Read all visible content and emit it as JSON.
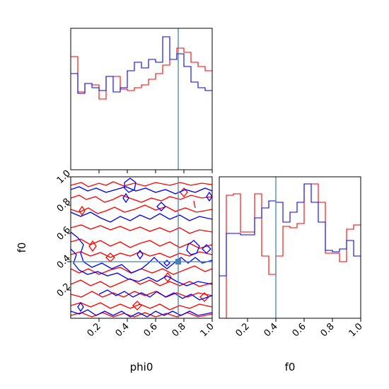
{
  "chart_data": {
    "type": "corner",
    "parameters": [
      "phi0",
      "f0"
    ],
    "truth": {
      "phi0": 0.76,
      "f0": 0.4
    },
    "colors": {
      "series_a": "#ff0000",
      "series_b": "#0000ff",
      "truth": "#4682b4"
    },
    "ticks": [
      "0.2",
      "0.4",
      "0.6",
      "0.8",
      "1.0"
    ],
    "tick_values": [
      0.2,
      0.4,
      0.6,
      0.8,
      1.0
    ],
    "xlim": [
      0,
      1
    ],
    "ylim": [
      0,
      1
    ],
    "hist_phi0": {
      "bins": 20,
      "red": [
        0.8,
        0.55,
        0.61,
        0.6,
        0.5,
        0.66,
        0.66,
        0.57,
        0.56,
        0.58,
        0.6,
        0.64,
        0.68,
        0.74,
        0.78,
        0.86,
        0.83,
        0.76,
        0.73,
        0.7
      ],
      "blue": [
        0.68,
        0.54,
        0.61,
        0.58,
        0.56,
        0.66,
        0.55,
        0.58,
        0.7,
        0.76,
        0.72,
        0.78,
        0.76,
        0.94,
        0.78,
        0.82,
        0.73,
        0.62,
        0.58,
        0.56
      ]
    },
    "hist_f0": {
      "bins": 20,
      "red": [
        0.0,
        0.87,
        0.88,
        0.61,
        0.61,
        0.88,
        0.44,
        0.31,
        0.44,
        0.65,
        0.64,
        0.67,
        0.95,
        0.95,
        0.82,
        0.46,
        0.46,
        0.4,
        0.63,
        0.66
      ],
      "blue": [
        0.3,
        0.6,
        0.6,
        0.59,
        0.59,
        0.71,
        0.78,
        0.83,
        0.82,
        0.68,
        0.75,
        0.82,
        0.95,
        0.82,
        0.68,
        0.48,
        0.47,
        0.49,
        0.55,
        0.44
      ]
    },
    "xlabels": {
      "phi0": "phi0",
      "f0": "f0"
    },
    "ylabel": "f0"
  }
}
